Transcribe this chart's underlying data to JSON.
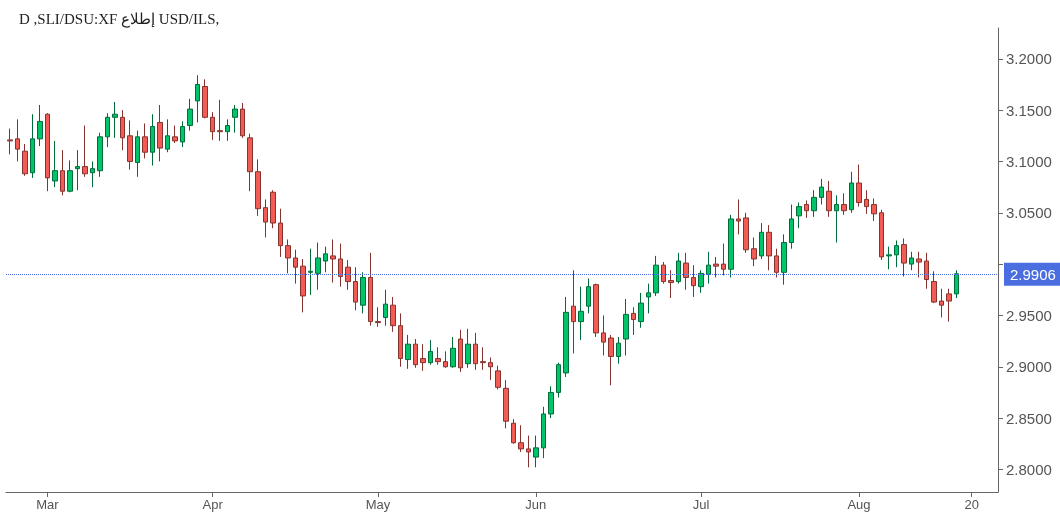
{
  "chart_data": {
    "type": "candlestick",
    "title": "D ,SLI/DSU:XF إطلاع USD/ILS,",
    "categories": [
      null,
      null,
      null,
      null,
      null,
      "Mar",
      null,
      null,
      null,
      null,
      null,
      null,
      null,
      null,
      null,
      null,
      null,
      null,
      null,
      null,
      null,
      null,
      null,
      null,
      null,
      null,
      null,
      "Apr",
      null,
      null,
      null,
      null,
      null,
      null,
      null,
      null,
      null,
      null,
      null,
      null,
      null,
      null,
      null,
      null,
      null,
      null,
      null,
      null,
      null,
      "May",
      null,
      null,
      null,
      null,
      null,
      null,
      null,
      null,
      null,
      null,
      null,
      null,
      null,
      null,
      null,
      null,
      null,
      null,
      null,
      null,
      "Jun",
      null,
      null,
      null,
      null,
      null,
      null,
      null,
      null,
      null,
      null,
      null,
      null,
      null,
      null,
      null,
      null,
      null,
      null,
      null,
      null,
      null,
      "Jul",
      null,
      null,
      null,
      null,
      null,
      null,
      null,
      null,
      null,
      null,
      null,
      null,
      null,
      null,
      null,
      null,
      null,
      null,
      null,
      null,
      "Aug",
      null,
      null,
      null,
      null,
      null,
      null,
      null,
      null,
      null,
      null,
      null,
      null,
      null,
      null,
      "20",
      null,
      null,
      null
    ],
    "ohlc": [
      [
        3.121,
        3.132,
        3.107,
        3.12
      ],
      [
        3.122,
        3.141,
        3.1,
        3.112
      ],
      [
        3.11,
        3.117,
        3.086,
        3.088
      ],
      [
        3.089,
        3.146,
        3.084,
        3.122
      ],
      [
        3.122,
        3.155,
        3.115,
        3.139
      ],
      [
        3.146,
        3.147,
        3.071,
        3.084
      ],
      [
        3.081,
        3.12,
        3.075,
        3.091
      ],
      [
        3.091,
        3.111,
        3.067,
        3.071
      ],
      [
        3.071,
        3.101,
        3.07,
        3.091
      ],
      [
        3.093,
        3.111,
        3.072,
        3.095
      ],
      [
        3.095,
        3.135,
        3.085,
        3.088
      ],
      [
        3.089,
        3.1,
        3.075,
        3.093
      ],
      [
        3.091,
        3.128,
        3.085,
        3.124
      ],
      [
        3.124,
        3.147,
        3.114,
        3.143
      ],
      [
        3.143,
        3.158,
        3.123,
        3.146
      ],
      [
        3.143,
        3.15,
        3.111,
        3.123
      ],
      [
        3.125,
        3.14,
        3.092,
        3.1
      ],
      [
        3.099,
        3.13,
        3.085,
        3.124
      ],
      [
        3.124,
        3.137,
        3.103,
        3.109
      ],
      [
        3.109,
        3.146,
        3.096,
        3.134
      ],
      [
        3.138,
        3.155,
        3.1,
        3.113
      ],
      [
        3.112,
        3.141,
        3.109,
        3.125
      ],
      [
        3.124,
        3.135,
        3.118,
        3.12
      ],
      [
        3.119,
        3.139,
        3.114,
        3.134
      ],
      [
        3.135,
        3.161,
        3.13,
        3.151
      ],
      [
        3.159,
        3.184,
        3.138,
        3.175
      ],
      [
        3.173,
        3.18,
        3.142,
        3.143
      ],
      [
        3.143,
        3.148,
        3.121,
        3.129
      ],
      [
        3.13,
        3.16,
        3.12,
        3.129
      ],
      [
        3.129,
        3.141,
        3.12,
        3.135
      ],
      [
        3.143,
        3.155,
        3.128,
        3.151
      ],
      [
        3.151,
        3.157,
        3.123,
        3.125
      ],
      [
        3.123,
        3.127,
        3.071,
        3.09
      ],
      [
        3.09,
        3.102,
        3.047,
        3.054
      ],
      [
        3.055,
        3.063,
        3.026,
        3.041
      ],
      [
        3.07,
        3.072,
        3.035,
        3.04
      ],
      [
        3.04,
        3.054,
        3.007,
        3.018
      ],
      [
        3.018,
        3.024,
        2.991,
        3.006
      ],
      [
        3.006,
        3.014,
        2.981,
        2.997
      ],
      [
        2.998,
        3.005,
        2.953,
        2.969
      ],
      [
        2.992,
        3.015,
        2.97,
        2.993
      ],
      [
        2.991,
        3.021,
        2.975,
        3.006
      ],
      [
        3.003,
        3.017,
        2.992,
        3.01
      ],
      [
        3.008,
        3.024,
        2.982,
        3.005
      ],
      [
        3.005,
        3.02,
        2.978,
        2.988
      ],
      [
        2.997,
        3.004,
        2.975,
        2.983
      ],
      [
        2.983,
        2.997,
        2.955,
        2.963
      ],
      [
        2.96,
        2.992,
        2.952,
        2.987
      ],
      [
        2.987,
        3.011,
        2.94,
        2.944
      ],
      [
        2.944,
        2.958,
        2.939,
        2.943
      ],
      [
        2.948,
        2.975,
        2.94,
        2.961
      ],
      [
        2.96,
        2.968,
        2.934,
        2.94
      ],
      [
        2.94,
        2.952,
        2.9,
        2.908
      ],
      [
        2.907,
        2.931,
        2.898,
        2.922
      ],
      [
        2.922,
        2.927,
        2.899,
        2.902
      ],
      [
        2.908,
        2.922,
        2.896,
        2.904
      ],
      [
        2.904,
        2.926,
        2.902,
        2.915
      ],
      [
        2.908,
        2.919,
        2.902,
        2.905
      ],
      [
        2.905,
        2.915,
        2.899,
        2.9
      ],
      [
        2.9,
        2.929,
        2.899,
        2.918
      ],
      [
        2.927,
        2.936,
        2.895,
        2.899
      ],
      [
        2.903,
        2.937,
        2.899,
        2.922
      ],
      [
        2.922,
        2.933,
        2.897,
        2.903
      ],
      [
        2.905,
        2.919,
        2.897,
        2.904
      ],
      [
        2.904,
        2.909,
        2.887,
        2.9
      ],
      [
        2.896,
        2.901,
        2.878,
        2.88
      ],
      [
        2.879,
        2.887,
        2.84,
        2.847
      ],
      [
        2.845,
        2.849,
        2.825,
        2.826
      ],
      [
        2.826,
        2.843,
        2.817,
        2.82
      ],
      [
        2.82,
        2.833,
        2.802,
        2.817
      ],
      [
        2.812,
        2.833,
        2.802,
        2.821
      ],
      [
        2.821,
        2.861,
        2.811,
        2.854
      ],
      [
        2.854,
        2.881,
        2.85,
        2.875
      ],
      [
        2.875,
        2.904,
        2.87,
        2.902
      ],
      [
        2.894,
        2.968,
        2.89,
        2.953
      ],
      [
        2.959,
        2.994,
        2.913,
        2.944
      ],
      [
        2.944,
        2.978,
        2.926,
        2.954
      ],
      [
        2.959,
        2.986,
        2.952,
        2.978
      ],
      [
        2.98,
        2.981,
        2.929,
        2.933
      ],
      [
        2.933,
        2.95,
        2.911,
        2.924
      ],
      [
        2.928,
        2.931,
        2.882,
        2.91
      ],
      [
        2.91,
        2.929,
        2.903,
        2.923
      ],
      [
        2.927,
        2.966,
        2.911,
        2.951
      ],
      [
        2.952,
        2.958,
        2.931,
        2.946
      ],
      [
        2.944,
        2.972,
        2.938,
        2.962
      ],
      [
        2.968,
        2.981,
        2.952,
        2.972
      ],
      [
        2.972,
        3.008,
        2.969,
        2.999
      ],
      [
        2.999,
        3.002,
        2.981,
        2.983
      ],
      [
        2.984,
        2.994,
        2.967,
        2.982
      ],
      [
        2.983,
        3.011,
        2.981,
        3.003
      ],
      [
        3.001,
        3.011,
        2.975,
        2.987
      ],
      [
        2.987,
        2.999,
        2.968,
        2.979
      ],
      [
        2.978,
        2.994,
        2.972,
        2.991
      ],
      [
        2.99,
        3.012,
        2.981,
        2.999
      ],
      [
        3.0,
        3.007,
        2.987,
        2.998
      ],
      [
        3.0,
        3.02,
        2.989,
        2.995
      ],
      [
        2.995,
        3.048,
        2.987,
        3.044
      ],
      [
        3.044,
        3.063,
        3.029,
        3.042
      ],
      [
        3.045,
        3.05,
        3.011,
        3.014
      ],
      [
        3.015,
        3.026,
        2.998,
        3.005
      ],
      [
        3.008,
        3.04,
        3.005,
        3.031
      ],
      [
        3.031,
        3.038,
        2.994,
        3.008
      ],
      [
        3.008,
        3.015,
        2.987,
        2.992
      ],
      [
        2.992,
        3.029,
        2.98,
        3.021
      ],
      [
        3.021,
        3.058,
        3.015,
        3.044
      ],
      [
        3.047,
        3.06,
        3.035,
        3.056
      ],
      [
        3.058,
        3.062,
        3.045,
        3.052
      ],
      [
        3.052,
        3.072,
        3.046,
        3.065
      ],
      [
        3.065,
        3.083,
        3.058,
        3.075
      ],
      [
        3.071,
        3.081,
        3.046,
        3.052
      ],
      [
        3.052,
        3.067,
        3.021,
        3.058
      ],
      [
        3.058,
        3.069,
        3.048,
        3.052
      ],
      [
        3.053,
        3.09,
        3.05,
        3.079
      ],
      [
        3.079,
        3.097,
        3.056,
        3.06
      ],
      [
        3.063,
        3.072,
        3.049,
        3.056
      ],
      [
        3.058,
        3.064,
        3.042,
        3.049
      ],
      [
        3.05,
        3.053,
        3.004,
        3.007
      ],
      [
        3.008,
        3.017,
        2.995,
        3.009
      ],
      [
        3.009,
        3.023,
        2.997,
        3.018
      ],
      [
        3.019,
        3.025,
        2.988,
        3.001
      ],
      [
        3.0,
        3.012,
        2.994,
        3.006
      ],
      [
        3.005,
        3.012,
        2.987,
        3.002
      ],
      [
        3.003,
        3.011,
        2.976,
        2.985
      ],
      [
        2.983,
        2.993,
        2.962,
        2.963
      ],
      [
        2.964,
        2.976,
        2.948,
        2.96
      ],
      [
        2.971,
        2.976,
        2.944,
        2.964
      ],
      [
        2.971,
        2.994,
        2.967,
        2.9906
      ],
      null,
      null,
      null,
      null,
      null
    ],
    "colors": [
      "#f25c54",
      "#f25c54",
      "#f25c54",
      "#00c46a",
      "#00c46a",
      "#f25c54",
      "#00c46a",
      "#f25c54",
      "#00c46a",
      "#00c46a",
      "#f25c54",
      "#00c46a",
      "#00c46a",
      "#00c46a",
      "#00c46a",
      "#f25c54",
      "#f25c54",
      "#00c46a",
      "#f25c54",
      "#00c46a",
      "#f25c54",
      "#00c46a",
      "#f25c54",
      "#00c46a",
      "#00c46a",
      "#00c46a",
      "#f25c54",
      "#f25c54",
      "#f25c54",
      "#00c46a",
      "#00c46a",
      "#f25c54",
      "#f25c54",
      "#f25c54",
      "#f25c54",
      "#f25c54",
      "#f25c54",
      "#f25c54",
      "#f25c54",
      "#f25c54",
      "#00c46a",
      "#00c46a",
      "#00c46a",
      "#f25c54",
      "#f25c54",
      "#f25c54",
      "#f25c54",
      "#00c46a",
      "#f25c54",
      "#f25c54",
      "#00c46a",
      "#f25c54",
      "#f25c54",
      "#00c46a",
      "#f25c54",
      "#f25c54",
      "#00c46a",
      "#f25c54",
      "#f25c54",
      "#00c46a",
      "#f25c54",
      "#00c46a",
      "#f25c54",
      "#f25c54",
      "#f25c54",
      "#f25c54",
      "#f25c54",
      "#f25c54",
      "#f25c54",
      "#f25c54",
      "#00c46a",
      "#00c46a",
      "#00c46a",
      "#00c46a",
      "#00c46a",
      "#f25c54",
      "#00c46a",
      "#00c46a",
      "#f25c54",
      "#f25c54",
      "#f25c54",
      "#00c46a",
      "#00c46a",
      "#f25c54",
      "#00c46a",
      "#00c46a",
      "#00c46a",
      "#f25c54",
      "#f25c54",
      "#00c46a",
      "#f25c54",
      "#f25c54",
      "#00c46a",
      "#00c46a",
      "#f25c54",
      "#f25c54",
      "#00c46a",
      "#f25c54",
      "#f25c54",
      "#f25c54",
      "#00c46a",
      "#f25c54",
      "#f25c54",
      "#00c46a",
      "#00c46a",
      "#00c46a",
      "#f25c54",
      "#00c46a",
      "#00c46a",
      "#f25c54",
      "#00c46a",
      "#f25c54",
      "#00c46a",
      "#f25c54",
      "#f25c54",
      "#f25c54",
      "#f25c54",
      "#00c46a",
      "#00c46a",
      "#f25c54",
      "#00c46a",
      "#f25c54",
      "#f25c54",
      "#f25c54",
      "#f25c54",
      "#f25c54",
      "#00c46a",
      null,
      null,
      null,
      null,
      null
    ],
    "ylim": [
      2.778,
      3.23
    ],
    "yticks": [
      {
        "value": 2.8,
        "label": "2.8000"
      },
      {
        "value": 2.85,
        "label": "2.8500"
      },
      {
        "value": 2.9,
        "label": "2.9000"
      },
      {
        "value": 2.95,
        "label": "2.9500"
      },
      {
        "value": 3.0,
        "label": null
      },
      {
        "value": 3.05,
        "label": "3.0500"
      },
      {
        "value": 3.1,
        "label": "3.1000"
      },
      {
        "value": 3.15,
        "label": "3.1500"
      },
      {
        "value": 3.2,
        "label": "3.2000"
      }
    ],
    "ref_lines": [
      {
        "axis": "y",
        "value": 2.9906,
        "label": "2.9906",
        "color": "#4a6ee0",
        "line_style": "dotted"
      }
    ],
    "grid": false
  }
}
